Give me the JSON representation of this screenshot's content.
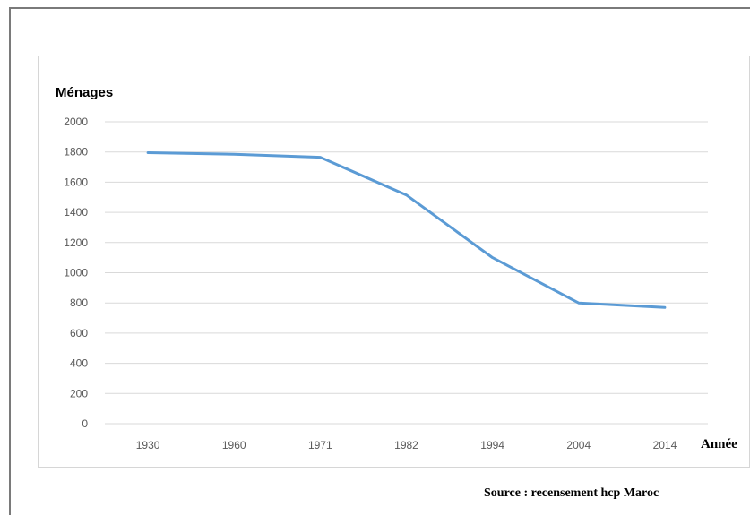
{
  "chart_data": {
    "type": "line",
    "categories": [
      "1930",
      "1960",
      "1971",
      "1982",
      "1994",
      "2004",
      "2014"
    ],
    "series": [
      {
        "values": [
          1795,
          1785,
          1765,
          1515,
          1100,
          800,
          770
        ],
        "color": "#5b9bd5"
      }
    ],
    "title": "",
    "xlabel": "Année",
    "ylabel": "Ménages",
    "ylim": [
      0,
      2000
    ],
    "yticks": [
      "0",
      "200",
      "400",
      "600",
      "800",
      "1000",
      "1200",
      "1400",
      "1600",
      "1800",
      "2000"
    ],
    "grid": true,
    "gridline_color": "#d9d9d9",
    "tick_label_color": "#595959"
  },
  "source_note": "Source : recensement hcp Maroc"
}
